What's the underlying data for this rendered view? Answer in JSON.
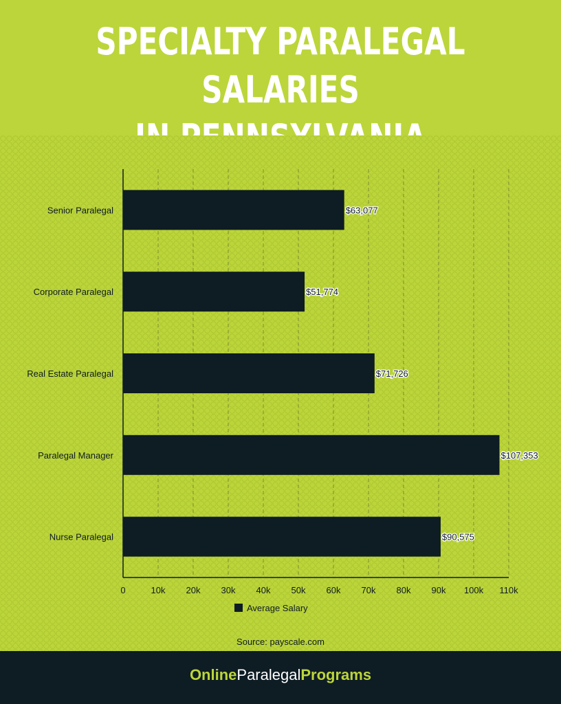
{
  "title_line1": "SPECIALTY PARALEGAL SALARIES",
  "title_line2": "IN PENNSYLVANIA",
  "source": "Source: payscale.com",
  "brand": {
    "part1": "Online",
    "part2": "Paralegal",
    "part3": "Programs"
  },
  "colors": {
    "background": "#bcd53a",
    "bar": "#0e1c24",
    "footer": "#0e1c24",
    "brand_accent": "#bcd53a"
  },
  "chart_data": {
    "type": "bar",
    "orientation": "horizontal",
    "categories": [
      "Senior Paralegal",
      "Corporate Paralegal",
      "Real Estate Paralegal",
      "Paralegal Manager",
      "Nurse Paralegal"
    ],
    "series": [
      {
        "name": "Average Salary",
        "values": [
          63077,
          51774,
          71726,
          107353,
          90575
        ]
      }
    ],
    "data_labels": [
      "$63,077",
      "$51,774",
      "$71,726",
      "$107,353",
      "$90,575"
    ],
    "xticks": [
      "0",
      "10k",
      "20k",
      "30k",
      "40k",
      "50k",
      "60k",
      "70k",
      "80k",
      "90k",
      "100k",
      "110k"
    ],
    "xlim": [
      0,
      110000
    ],
    "grid": "vertical dashed",
    "legend": "bottom-center"
  }
}
